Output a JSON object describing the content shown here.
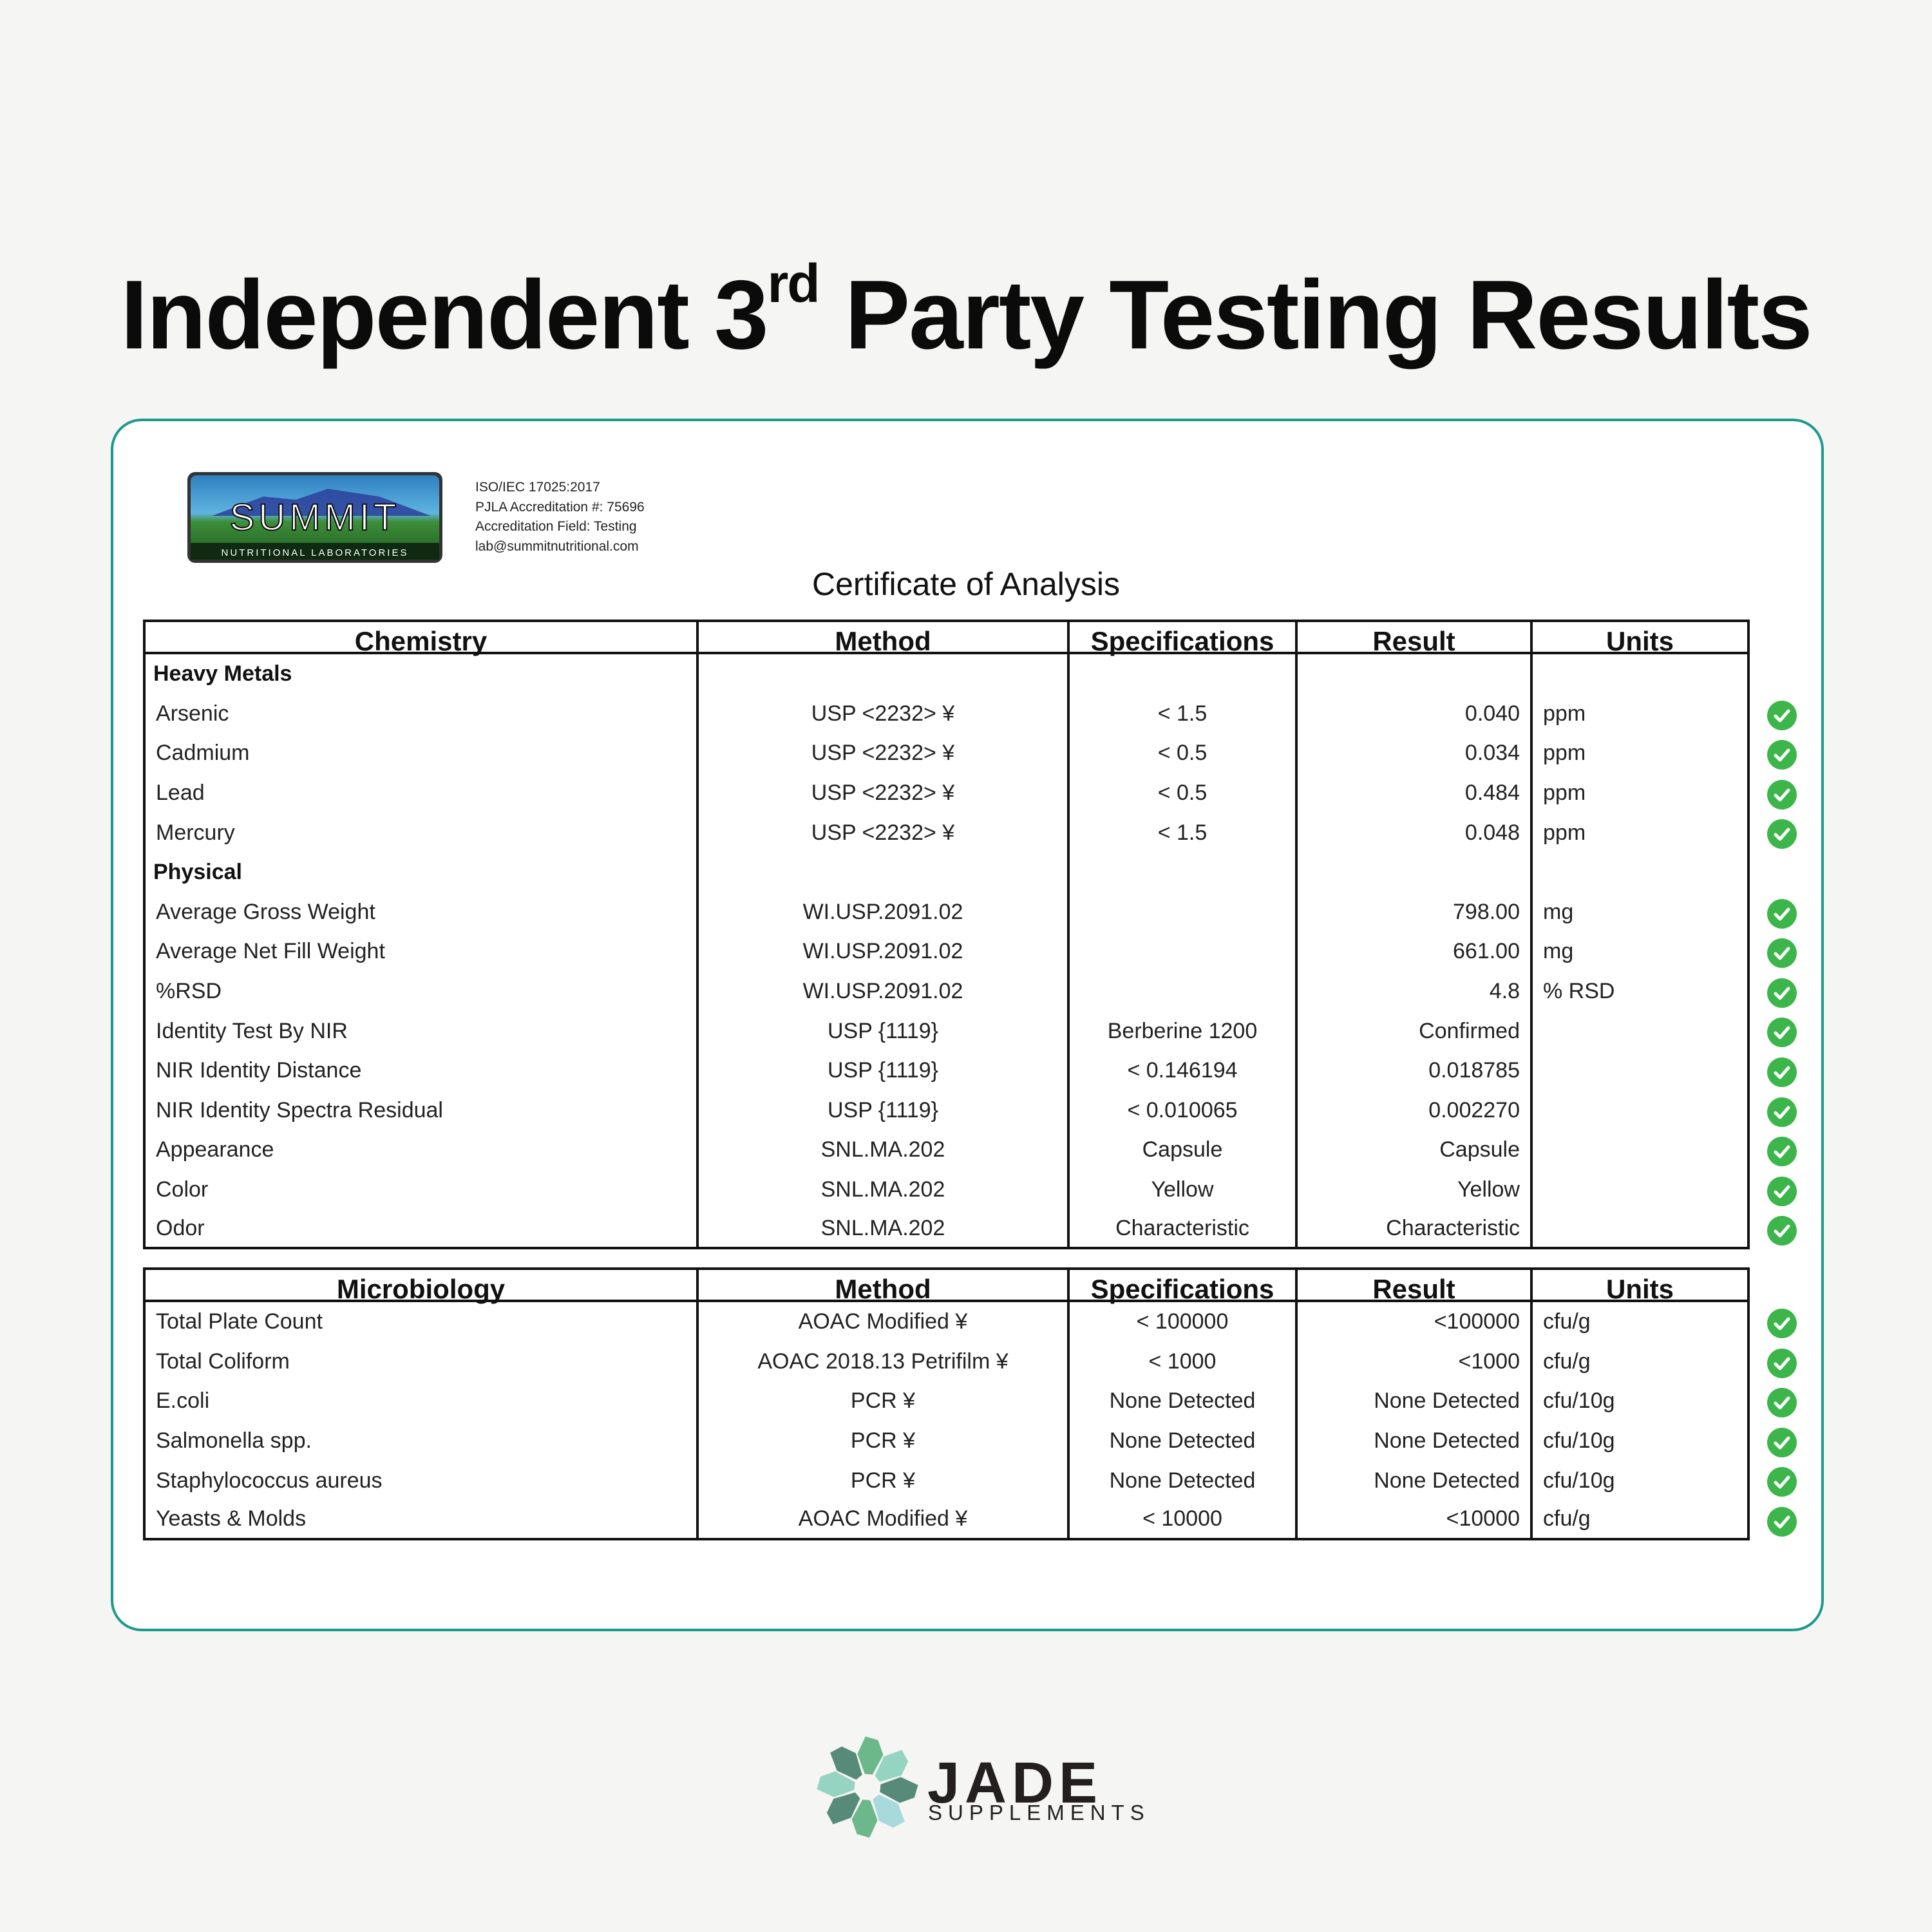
{
  "title": {
    "pre": "Independent 3",
    "sup": "rd",
    "post": " Party Testing Results"
  },
  "lab": {
    "logo_text": "SUMMIT",
    "logo_subtext": "NUTRITIONAL LABORATORIES",
    "info": [
      "ISO/IEC 17025:2017",
      "PJLA Accreditation #: 75696",
      "Accreditation Field: Testing",
      "lab@summitnutritional.com"
    ]
  },
  "certificate_title": "Certificate of Analysis",
  "colors": {
    "accent": "#1a9a8a",
    "pass": "#3cb54a"
  },
  "chemistry": {
    "headers": [
      "Chemistry",
      "Method",
      "Specifications",
      "Result",
      "Units"
    ],
    "rows": [
      {
        "section": "Heavy Metals"
      },
      {
        "name": "Arsenic",
        "method": "USP <2232> ¥",
        "spec": "< 1.5",
        "result": "0.040",
        "units": "ppm",
        "pass": true
      },
      {
        "name": "Cadmium",
        "method": "USP <2232> ¥",
        "spec": "< 0.5",
        "result": "0.034",
        "units": "ppm",
        "pass": true
      },
      {
        "name": "Lead",
        "method": "USP <2232> ¥",
        "spec": "< 0.5",
        "result": "0.484",
        "units": "ppm",
        "pass": true
      },
      {
        "name": "Mercury",
        "method": "USP <2232> ¥",
        "spec": "< 1.5",
        "result": "0.048",
        "units": "ppm",
        "pass": true
      },
      {
        "section": "Physical"
      },
      {
        "name": "Average Gross Weight",
        "method": "WI.USP.2091.02",
        "spec": "",
        "result": "798.00",
        "units": "mg",
        "pass": true
      },
      {
        "name": "Average Net Fill Weight",
        "method": "WI.USP.2091.02",
        "spec": "",
        "result": "661.00",
        "units": "mg",
        "pass": true
      },
      {
        "name": "%RSD",
        "method": "WI.USP.2091.02",
        "spec": "",
        "result": "4.8",
        "units": "% RSD",
        "pass": true
      },
      {
        "name": "Identity Test By NIR",
        "method": "USP {1119}",
        "spec": "Berberine 1200",
        "result": "Confirmed",
        "units": "",
        "pass": true
      },
      {
        "name": "NIR Identity Distance",
        "method": "USP {1119}",
        "spec": "< 0.146194",
        "result": "0.018785",
        "units": "",
        "pass": true
      },
      {
        "name": "NIR Identity Spectra Residual",
        "method": "USP {1119}",
        "spec": "< 0.010065",
        "result": "0.002270",
        "units": "",
        "pass": true
      },
      {
        "name": "Appearance",
        "method": "SNL.MA.202",
        "spec": "Capsule",
        "result": "Capsule",
        "units": "",
        "pass": true
      },
      {
        "name": "Color",
        "method": "SNL.MA.202",
        "spec": "Yellow",
        "result": "Yellow",
        "units": "",
        "pass": true
      },
      {
        "name": "Odor",
        "method": "SNL.MA.202",
        "spec": "Characteristic",
        "result": "Characteristic",
        "units": "",
        "pass": true
      }
    ]
  },
  "microbiology": {
    "headers": [
      "Microbiology",
      "Method",
      "Specifications",
      "Result",
      "Units"
    ],
    "rows": [
      {
        "name": "Total Plate Count",
        "method": "AOAC Modified ¥",
        "spec": "< 100000",
        "result": "<100000",
        "units": "cfu/g",
        "pass": true
      },
      {
        "name": "Total Coliform",
        "method": "AOAC 2018.13 Petrifilm ¥",
        "spec": "< 1000",
        "result": "<1000",
        "units": "cfu/g",
        "pass": true
      },
      {
        "name": "E.coli",
        "method": "PCR ¥",
        "spec": "None Detected",
        "result": "None Detected",
        "units": "cfu/10g",
        "pass": true
      },
      {
        "name": "Salmonella spp.",
        "method": "PCR ¥",
        "spec": "None Detected",
        "result": "None Detected",
        "units": "cfu/10g",
        "pass": true
      },
      {
        "name": "Staphylococcus aureus",
        "method": "PCR ¥",
        "spec": "None Detected",
        "result": "None Detected",
        "units": "cfu/10g",
        "pass": true
      },
      {
        "name": "Yeasts & Molds",
        "method": "AOAC Modified ¥",
        "spec": "< 10000",
        "result": "<10000",
        "units": "cfu/g",
        "pass": true
      }
    ]
  },
  "brand": {
    "name": "JADE",
    "tagline": "SUPPLEMENTS"
  }
}
